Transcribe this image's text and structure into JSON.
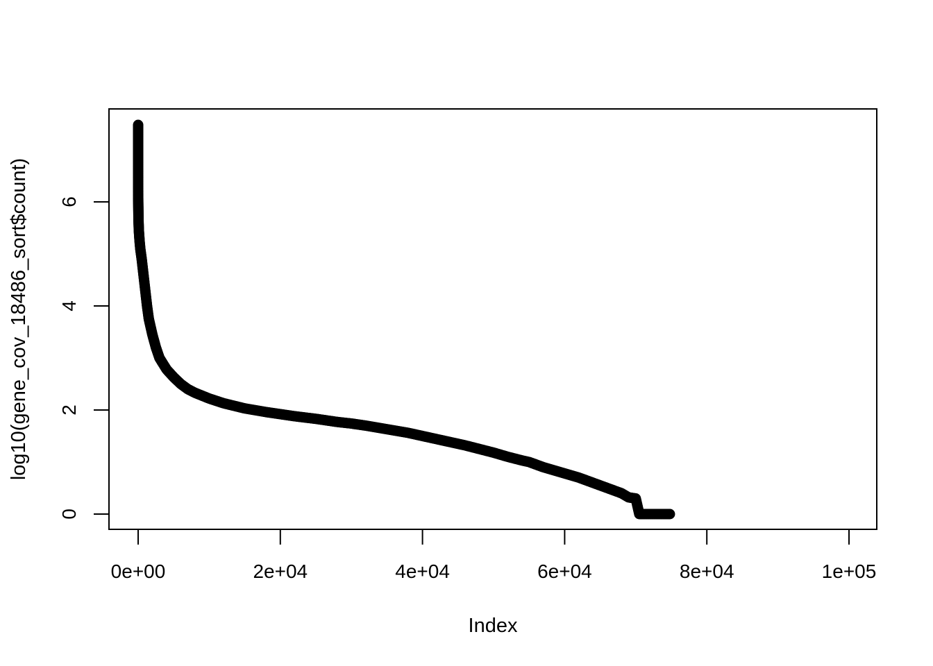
{
  "chart_data": {
    "type": "scatter",
    "title": "",
    "xlabel": "Index",
    "ylabel": "log10(gene_cov_18486_sort$count)",
    "xlim": [
      -2000,
      104000
    ],
    "ylim": [
      -0.3,
      7.8
    ],
    "grid": false,
    "legend": "none",
    "x_ticks": [
      0,
      20000,
      40000,
      60000,
      80000,
      100000
    ],
    "x_tick_labels": [
      "0e+00",
      "2e+04",
      "4e+04",
      "6e+04",
      "8e+04",
      "1e+05"
    ],
    "y_ticks": [
      0,
      2,
      4,
      6
    ],
    "y_tick_labels": [
      "0",
      "2",
      "4",
      "6"
    ],
    "marker": "open-circle",
    "color": "#000000",
    "series": [
      {
        "x": [
          1,
          5,
          10,
          15,
          20,
          30,
          40,
          50,
          75,
          100,
          150,
          200,
          300,
          400,
          500,
          750,
          1000,
          1250,
          1500,
          2000,
          2500,
          3000,
          4000,
          5000,
          6000,
          7000,
          8000,
          10000,
          12000,
          15000,
          18000,
          20000,
          22000,
          25000,
          28000,
          30000,
          32000,
          35000,
          38000,
          40000,
          42000,
          44000,
          46000,
          48000,
          50000,
          52000,
          54000,
          55000,
          56000,
          57000,
          58000,
          59000,
          60000,
          61000,
          62000,
          63000,
          64000,
          65000,
          66000,
          67000,
          68000,
          69000,
          70000,
          70500,
          71000,
          72000,
          73000,
          74000,
          74800
        ],
        "y": [
          7.48,
          6.3,
          6.08,
          6.0,
          5.95,
          5.85,
          5.75,
          5.65,
          5.55,
          5.45,
          5.35,
          5.25,
          5.1,
          5.0,
          4.9,
          4.6,
          4.3,
          4.0,
          3.75,
          3.45,
          3.2,
          3.0,
          2.78,
          2.63,
          2.5,
          2.4,
          2.33,
          2.22,
          2.13,
          2.03,
          1.96,
          1.92,
          1.88,
          1.83,
          1.77,
          1.74,
          1.7,
          1.63,
          1.56,
          1.5,
          1.44,
          1.38,
          1.32,
          1.25,
          1.18,
          1.1,
          1.03,
          1.0,
          0.95,
          0.9,
          0.86,
          0.82,
          0.78,
          0.74,
          0.7,
          0.65,
          0.6,
          0.55,
          0.5,
          0.45,
          0.4,
          0.32,
          0.3,
          0.0,
          0.0,
          0.0,
          0.0,
          0.0,
          0.0
        ]
      }
    ]
  }
}
